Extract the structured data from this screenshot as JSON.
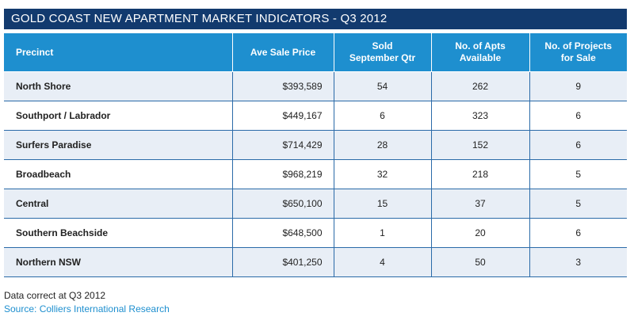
{
  "title": "GOLD COAST NEW APARTMENT MARKET INDICATORS - Q3 2012",
  "columns": [
    "Precinct",
    "Ave Sale Price",
    "Sold\nSeptember Qtr",
    "No. of Apts\nAvailable",
    "No. of Projects\nfor Sale"
  ],
  "columns_lines": [
    [
      "Precinct"
    ],
    [
      "Ave Sale Price"
    ],
    [
      "Sold",
      "September Qtr"
    ],
    [
      "No. of Apts",
      "Available"
    ],
    [
      "No. of Projects",
      "for Sale"
    ]
  ],
  "rows": [
    [
      "North Shore",
      "$393,589",
      "54",
      "262",
      "9"
    ],
    [
      "Southport / Labrador",
      "$449,167",
      "6",
      "323",
      "6"
    ],
    [
      "Surfers Paradise",
      "$714,429",
      "28",
      "152",
      "6"
    ],
    [
      "Broadbeach",
      "$968,219",
      "32",
      "218",
      "5"
    ],
    [
      "Central",
      "$650,100",
      "15",
      "37",
      "5"
    ],
    [
      "Southern Beachside",
      "$648,500",
      "1",
      "20",
      "6"
    ],
    [
      "Northern NSW",
      "$401,250",
      "4",
      "50",
      "3"
    ]
  ],
  "footnote": "Data correct at Q3 2012",
  "source": "Source: Colliers International Research",
  "colors": {
    "title_bg": "#123a6e",
    "header_bg": "#1e8fcf",
    "row_shade": "#e8eef6",
    "rule": "#2a6aa8",
    "source_text": "#1e8fcf"
  },
  "chart_data": {
    "type": "table",
    "title": "GOLD COAST NEW APARTMENT MARKET INDICATORS - Q3 2012",
    "columns": [
      "Precinct",
      "Ave Sale Price",
      "Sold September Qtr",
      "No. of Apts Available",
      "No. of Projects for Sale"
    ],
    "rows": [
      [
        "North Shore",
        393589,
        54,
        262,
        9
      ],
      [
        "Southport / Labrador",
        449167,
        6,
        323,
        6
      ],
      [
        "Surfers Paradise",
        714429,
        28,
        152,
        6
      ],
      [
        "Broadbeach",
        968219,
        32,
        218,
        5
      ],
      [
        "Central",
        650100,
        15,
        37,
        5
      ],
      [
        "Southern Beachside",
        648500,
        1,
        20,
        6
      ],
      [
        "Northern NSW",
        401250,
        4,
        50,
        3
      ]
    ]
  }
}
